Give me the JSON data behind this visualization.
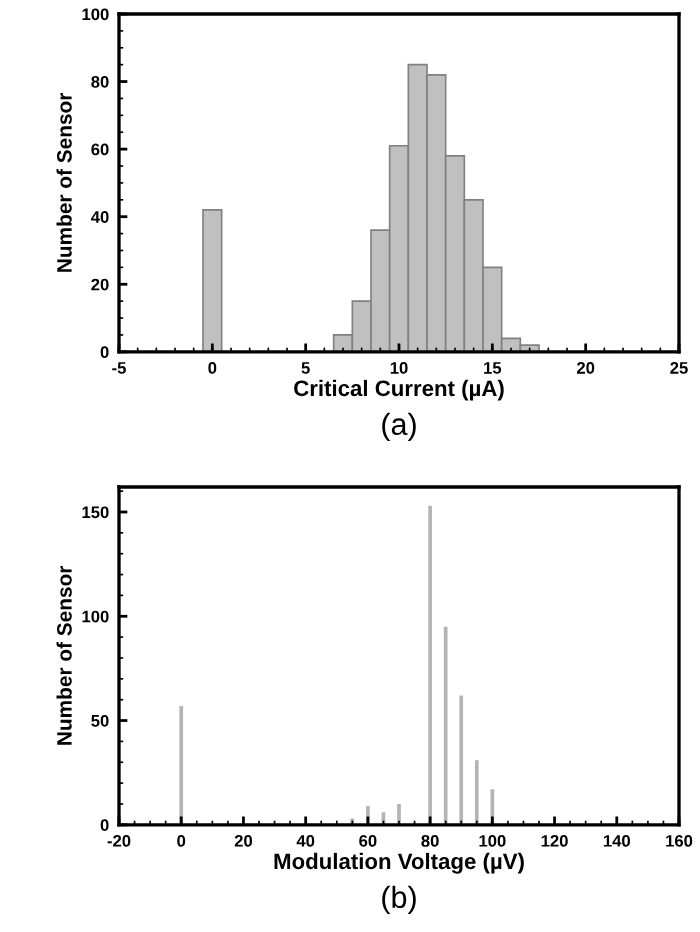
{
  "chart_data": [
    {
      "type": "histogram",
      "xlabel": "Critical Current (µA)",
      "ylabel": "Number of Sensor",
      "annotations": [
        "(a)"
      ],
      "bins": [
        -0.5,
        0.5,
        1.5,
        2.5,
        3.5,
        4.5,
        5.5,
        6.5,
        7.5,
        8.5,
        9.5,
        10.5,
        11.5,
        12.5,
        13.5,
        14.5,
        15.5,
        16.5,
        17.5
      ],
      "values": [
        42,
        0,
        0,
        0,
        0,
        0,
        0,
        5,
        15,
        36,
        61,
        85,
        82,
        58,
        45,
        25,
        4,
        2
      ],
      "color": "#c0c0c0",
      "xlim": [
        -5,
        25
      ],
      "xticks": [
        -5,
        0,
        5,
        10,
        15,
        20,
        25
      ],
      "ylim": [
        0,
        100
      ],
      "yticks": [
        0,
        20,
        40,
        60,
        80,
        100
      ],
      "grid": false
    },
    {
      "type": "bar",
      "xlabel": "Modulation Voltage (µV)",
      "ylabel": "Number of Sensor",
      "annotations": [
        "(b)"
      ],
      "x": [
        0,
        55,
        60,
        65,
        70,
        80,
        85,
        90,
        95,
        100
      ],
      "values": [
        57,
        3,
        9,
        6,
        10,
        153,
        95,
        62,
        31,
        17
      ],
      "color": "#b4b4b4",
      "xlim": [
        -20,
        160
      ],
      "xticks": [
        -20,
        0,
        20,
        40,
        60,
        80,
        100,
        120,
        140,
        160
      ],
      "ylim": [
        0,
        162
      ],
      "yticks": [
        0,
        50,
        100,
        150
      ],
      "grid": false
    }
  ]
}
